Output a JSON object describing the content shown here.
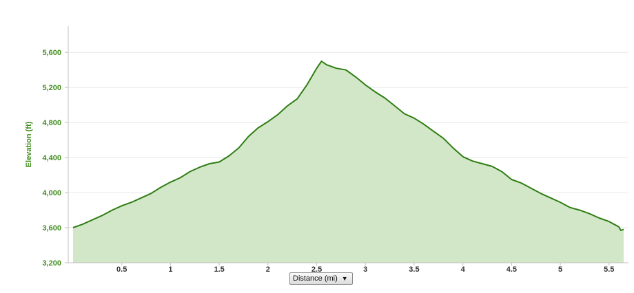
{
  "chart_data": {
    "type": "area",
    "title": "",
    "xlabel": "",
    "ylabel": "Elevation (ft)",
    "xlim": [
      0,
      5.65
    ],
    "ylim": [
      3200,
      5900
    ],
    "x_ticks": [
      0.5,
      1,
      1.5,
      2,
      2.5,
      3,
      3.5,
      4,
      4.5,
      5,
      5.5
    ],
    "x_tick_labels": [
      "0.5",
      "1",
      "1.5",
      "2",
      "2.5",
      "3",
      "3.5",
      "4",
      "4.5",
      "5",
      "5.5"
    ],
    "y_ticks": [
      3200,
      3600,
      4000,
      4400,
      4800,
      5200,
      5600
    ],
    "y_tick_labels": [
      "3,200",
      "3,600",
      "4,000",
      "4,400",
      "4,800",
      "5,200",
      "5,600"
    ],
    "grid": true,
    "legend": "none",
    "colors": {
      "line": "#2e7d12",
      "fill": "#d2e7c8",
      "grid": "#e6e6e6",
      "label": "#3f8c1c"
    },
    "series": [
      {
        "x": [
          0.0,
          0.1,
          0.2,
          0.3,
          0.4,
          0.5,
          0.6,
          0.7,
          0.8,
          0.9,
          1.0,
          1.1,
          1.2,
          1.3,
          1.4,
          1.5,
          1.6,
          1.7,
          1.8,
          1.9,
          2.0,
          2.1,
          2.2,
          2.3,
          2.4,
          2.5,
          2.55,
          2.6,
          2.7,
          2.8,
          2.9,
          3.0,
          3.1,
          3.2,
          3.3,
          3.4,
          3.5,
          3.6,
          3.7,
          3.8,
          3.9,
          4.0,
          4.1,
          4.2,
          4.3,
          4.4,
          4.5,
          4.6,
          4.7,
          4.8,
          4.9,
          5.0,
          5.1,
          5.2,
          5.3,
          5.4,
          5.5,
          5.6,
          5.62,
          5.65
        ],
        "values": [
          3600,
          3640,
          3690,
          3740,
          3800,
          3850,
          3890,
          3940,
          3990,
          4060,
          4120,
          4170,
          4240,
          4290,
          4330,
          4350,
          4420,
          4510,
          4640,
          4740,
          4810,
          4890,
          4990,
          5070,
          5230,
          5420,
          5500,
          5460,
          5420,
          5400,
          5320,
          5230,
          5150,
          5080,
          4990,
          4900,
          4850,
          4780,
          4700,
          4620,
          4510,
          4410,
          4360,
          4330,
          4300,
          4240,
          4150,
          4110,
          4050,
          3990,
          3940,
          3890,
          3830,
          3800,
          3760,
          3710,
          3670,
          3610,
          3570,
          3580
        ]
      }
    ]
  },
  "x_axis_selector": {
    "label": "Distance (mi)",
    "icon": "triangle-down-icon"
  }
}
